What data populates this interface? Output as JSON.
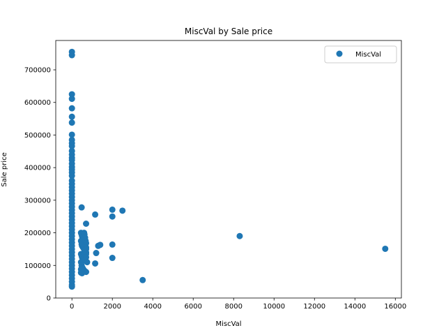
{
  "chart_data": {
    "type": "scatter",
    "title": "MiscVal by Sale price",
    "xlabel": "MiscVal",
    "ylabel": "Sale price",
    "xlim": [
      -800,
      16300
    ],
    "ylim": [
      0,
      790000
    ],
    "xticks": [
      0,
      2000,
      4000,
      6000,
      8000,
      10000,
      12000,
      14000,
      16000
    ],
    "xtick_labels": [
      "0",
      "2000",
      "4000",
      "6000",
      "8000",
      "10000",
      "12000",
      "14000",
      "16000"
    ],
    "yticks": [
      0,
      100000,
      200000,
      300000,
      400000,
      500000,
      600000,
      700000
    ],
    "ytick_labels": [
      "0",
      "100000",
      "200000",
      "300000",
      "400000",
      "500000",
      "600000",
      "700000"
    ],
    "grid": false,
    "legend_position": "upper-right",
    "series": [
      {
        "name": "MiscVal",
        "color": "#1f77b4",
        "points": [
          [
            0,
            755000
          ],
          [
            0,
            745000
          ],
          [
            0,
            625000
          ],
          [
            0,
            611000
          ],
          [
            0,
            582000
          ],
          [
            0,
            556000
          ],
          [
            0,
            538000
          ],
          [
            0,
            501000
          ],
          [
            0,
            485000
          ],
          [
            0,
            475000
          ],
          [
            0,
            466000
          ],
          [
            0,
            451000
          ],
          [
            0,
            440000
          ],
          [
            0,
            430000
          ],
          [
            0,
            423000
          ],
          [
            0,
            412000
          ],
          [
            0,
            402000
          ],
          [
            0,
            394000
          ],
          [
            0,
            385000
          ],
          [
            0,
            375000
          ],
          [
            0,
            360000
          ],
          [
            0,
            350000
          ],
          [
            0,
            340000
          ],
          [
            0,
            330000
          ],
          [
            0,
            320000
          ],
          [
            0,
            310000
          ],
          [
            0,
            300000
          ],
          [
            0,
            290000
          ],
          [
            0,
            280000
          ],
          [
            0,
            270000
          ],
          [
            0,
            260000
          ],
          [
            0,
            250000
          ],
          [
            0,
            240000
          ],
          [
            0,
            230000
          ],
          [
            0,
            220000
          ],
          [
            0,
            210000
          ],
          [
            0,
            200000
          ],
          [
            0,
            190000
          ],
          [
            0,
            180000
          ],
          [
            0,
            170000
          ],
          [
            0,
            160000
          ],
          [
            0,
            150000
          ],
          [
            0,
            140000
          ],
          [
            0,
            130000
          ],
          [
            0,
            120000
          ],
          [
            0,
            110000
          ],
          [
            0,
            100000
          ],
          [
            0,
            90000
          ],
          [
            0,
            80000
          ],
          [
            0,
            70000
          ],
          [
            0,
            60000
          ],
          [
            0,
            50000
          ],
          [
            0,
            40000
          ],
          [
            0,
            35000
          ],
          [
            450,
            200000
          ],
          [
            480,
            195000
          ],
          [
            500,
            190000
          ],
          [
            520,
            185000
          ],
          [
            450,
            175000
          ],
          [
            480,
            165000
          ],
          [
            500,
            160000
          ],
          [
            550,
            155000
          ],
          [
            600,
            150000
          ],
          [
            650,
            145000
          ],
          [
            700,
            140000
          ],
          [
            450,
            135000
          ],
          [
            480,
            130000
          ],
          [
            500,
            125000
          ],
          [
            550,
            120000
          ],
          [
            600,
            115000
          ],
          [
            450,
            110000
          ],
          [
            480,
            100000
          ],
          [
            500,
            95000
          ],
          [
            550,
            90000
          ],
          [
            600,
            85000
          ],
          [
            650,
            82000
          ],
          [
            700,
            80000
          ],
          [
            450,
            78000
          ],
          [
            500,
            76000
          ],
          [
            450,
            88000
          ],
          [
            600,
            200000
          ],
          [
            620,
            195000
          ],
          [
            650,
            185000
          ],
          [
            680,
            175000
          ],
          [
            700,
            168000
          ],
          [
            650,
            160000
          ],
          [
            700,
            155000
          ],
          [
            700,
            150000
          ],
          [
            650,
            145000
          ],
          [
            700,
            135000
          ],
          [
            700,
            125000
          ],
          [
            480,
            278000
          ],
          [
            700,
            228000
          ],
          [
            750,
            110000
          ],
          [
            1150,
            256000
          ],
          [
            1150,
            106000
          ],
          [
            1200,
            138000
          ],
          [
            1300,
            160000
          ],
          [
            1400,
            163000
          ],
          [
            2000,
            271000
          ],
          [
            2000,
            250000
          ],
          [
            2000,
            164000
          ],
          [
            2000,
            123000
          ],
          [
            2500,
            268000
          ],
          [
            3500,
            55000
          ],
          [
            8300,
            190000
          ],
          [
            15500,
            151000
          ]
        ]
      }
    ]
  }
}
